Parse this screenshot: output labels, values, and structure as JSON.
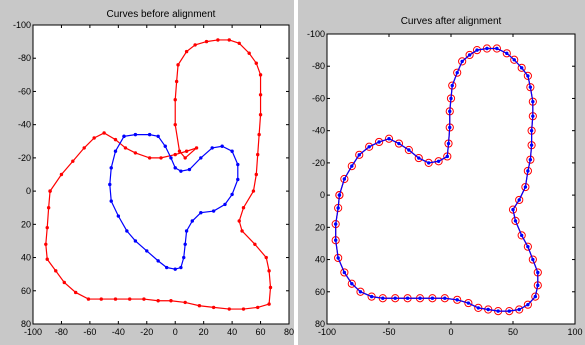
{
  "chart_data": [
    {
      "type": "line",
      "title": "Curves before alignment",
      "xlim": [
        -100,
        80
      ],
      "ylim": [
        -100,
        80
      ],
      "y_reversed": true,
      "xticks": [
        -100,
        -80,
        -60,
        -40,
        -20,
        0,
        20,
        40,
        60,
        80
      ],
      "yticks": [
        -100,
        -80,
        -60,
        -40,
        -20,
        0,
        20,
        40,
        60,
        80
      ],
      "grid": false,
      "series": [
        {
          "color": "#ff0000",
          "marker": "dot",
          "points": [
            [
              -88,
              0
            ],
            [
              -80,
              -10
            ],
            [
              -72,
              -18
            ],
            [
              -64,
              -26
            ],
            [
              -57,
              -32
            ],
            [
              -50,
              -35
            ],
            [
              -42,
              -31
            ],
            [
              -35,
              -26
            ],
            [
              -28,
              -23
            ],
            [
              -18,
              -20
            ],
            [
              -10,
              -20
            ],
            [
              0,
              -22
            ],
            [
              8,
              -24
            ],
            [
              15,
              -26
            ],
            [
              7,
              -20
            ],
            [
              3,
              -24
            ],
            [
              0,
              -40
            ],
            [
              0,
              -55
            ],
            [
              1,
              -66
            ],
            [
              2,
              -76
            ],
            [
              8,
              -84
            ],
            [
              14,
              -88
            ],
            [
              22,
              -90
            ],
            [
              30,
              -91
            ],
            [
              38,
              -91
            ],
            [
              45,
              -89
            ],
            [
              52,
              -83
            ],
            [
              57,
              -77
            ],
            [
              60,
              -70
            ],
            [
              60,
              -58
            ],
            [
              60,
              -46
            ],
            [
              59,
              -34
            ],
            [
              58,
              -22
            ],
            [
              57,
              -10
            ],
            [
              55,
              0
            ],
            [
              48,
              10
            ],
            [
              45,
              18
            ],
            [
              47,
              24
            ],
            [
              56,
              32
            ],
            [
              64,
              40
            ],
            [
              66,
              48
            ],
            [
              67,
              58
            ],
            [
              66,
              68
            ],
            [
              58,
              70
            ],
            [
              48,
              71
            ],
            [
              38,
              71
            ],
            [
              27,
              70
            ],
            [
              17,
              69
            ],
            [
              7,
              67
            ],
            [
              -3,
              66
            ],
            [
              -12,
              66
            ],
            [
              -22,
              65
            ],
            [
              -32,
              65
            ],
            [
              -42,
              65
            ],
            [
              -52,
              65
            ],
            [
              -61,
              65
            ],
            [
              -70,
              61
            ],
            [
              -78,
              55
            ],
            [
              -84,
              48
            ],
            [
              -90,
              41
            ],
            [
              -91,
              32
            ],
            [
              -90,
              22
            ],
            [
              -89,
              10
            ],
            [
              -88,
              0
            ]
          ]
        },
        {
          "color": "#0000ff",
          "marker": "dot",
          "points": [
            [
              -36,
              -33
            ],
            [
              -28,
              -34
            ],
            [
              -18,
              -34
            ],
            [
              -12,
              -33
            ],
            [
              -7,
              -27
            ],
            [
              -3,
              -20
            ],
            [
              0,
              -14
            ],
            [
              4,
              -12
            ],
            [
              10,
              -13
            ],
            [
              18,
              -20
            ],
            [
              26,
              -26
            ],
            [
              33,
              -27
            ],
            [
              40,
              -24
            ],
            [
              44,
              -16
            ],
            [
              44,
              -7
            ],
            [
              40,
              2
            ],
            [
              35,
              8
            ],
            [
              27,
              12
            ],
            [
              18,
              13
            ],
            [
              12,
              18
            ],
            [
              8,
              24
            ],
            [
              7,
              32
            ],
            [
              6,
              40
            ],
            [
              4,
              46
            ],
            [
              0,
              47
            ],
            [
              -6,
              46
            ],
            [
              -12,
              42
            ],
            [
              -20,
              36
            ],
            [
              -28,
              30
            ],
            [
              -34,
              24
            ],
            [
              -40,
              15
            ],
            [
              -45,
              6
            ],
            [
              -46,
              -4
            ],
            [
              -45,
              -14
            ],
            [
              -42,
              -24
            ],
            [
              -36,
              -33
            ]
          ]
        }
      ]
    },
    {
      "type": "line",
      "title": "Curves after alignment",
      "xlim": [
        -100,
        100
      ],
      "ylim": [
        -100,
        80
      ],
      "y_reversed": true,
      "xticks": [
        -100,
        -50,
        0,
        50,
        100
      ],
      "yticks": [
        -100,
        -80,
        -60,
        -40,
        -20,
        0,
        20,
        40,
        60,
        80
      ],
      "grid": false,
      "series": [
        {
          "color": "#ff0000",
          "marker": "circle",
          "points": [
            [
              -90,
              0
            ],
            [
              -86,
              -10
            ],
            [
              -80,
              -18
            ],
            [
              -74,
              -25
            ],
            [
              -66,
              -30
            ],
            [
              -58,
              -33
            ],
            [
              -50,
              -35
            ],
            [
              -42,
              -32
            ],
            [
              -34,
              -28
            ],
            [
              -26,
              -23
            ],
            [
              -18,
              -20
            ],
            [
              -10,
              -21
            ],
            [
              -3,
              -24
            ],
            [
              -2,
              -32
            ],
            [
              -1,
              -42
            ],
            [
              -1,
              -52
            ],
            [
              0,
              -60
            ],
            [
              1,
              -68
            ],
            [
              5,
              -76
            ],
            [
              9,
              -83
            ],
            [
              15,
              -87
            ],
            [
              21,
              -90
            ],
            [
              29,
              -91
            ],
            [
              37,
              -91
            ],
            [
              45,
              -88
            ],
            [
              51,
              -84
            ],
            [
              57,
              -79
            ],
            [
              62,
              -74
            ],
            [
              64,
              -67
            ],
            [
              66,
              -58
            ],
            [
              66,
              -49
            ],
            [
              65,
              -40
            ],
            [
              65,
              -31
            ],
            [
              64,
              -22
            ],
            [
              62,
              -15
            ],
            [
              60,
              -5
            ],
            [
              55,
              3
            ],
            [
              50,
              9
            ],
            [
              52,
              16
            ],
            [
              57,
              25
            ],
            [
              62,
              32
            ],
            [
              66,
              40
            ],
            [
              70,
              48
            ],
            [
              70,
              56
            ],
            [
              68,
              63
            ],
            [
              62,
              68
            ],
            [
              55,
              71
            ],
            [
              47,
              72
            ],
            [
              38,
              72
            ],
            [
              30,
              71
            ],
            [
              22,
              70
            ],
            [
              14,
              67
            ],
            [
              5,
              65
            ],
            [
              -5,
              64
            ],
            [
              -15,
              64
            ],
            [
              -25,
              64
            ],
            [
              -35,
              64
            ],
            [
              -45,
              64
            ],
            [
              -55,
              64
            ],
            [
              -64,
              63
            ],
            [
              -73,
              60
            ],
            [
              -80,
              55
            ],
            [
              -86,
              48
            ],
            [
              -91,
              39
            ],
            [
              -93,
              28
            ],
            [
              -93,
              18
            ],
            [
              -91,
              8
            ],
            [
              -90,
              0
            ]
          ]
        },
        {
          "color": "#0000ff",
          "marker": "dot",
          "points": [
            [
              -90,
              0
            ],
            [
              -86,
              -10
            ],
            [
              -80,
              -18
            ],
            [
              -74,
              -25
            ],
            [
              -66,
              -30
            ],
            [
              -58,
              -33
            ],
            [
              -50,
              -35
            ],
            [
              -42,
              -32
            ],
            [
              -34,
              -28
            ],
            [
              -26,
              -23
            ],
            [
              -18,
              -20
            ],
            [
              -10,
              -21
            ],
            [
              -3,
              -24
            ],
            [
              -2,
              -32
            ],
            [
              -1,
              -42
            ],
            [
              -1,
              -52
            ],
            [
              0,
              -60
            ],
            [
              1,
              -68
            ],
            [
              5,
              -76
            ],
            [
              9,
              -83
            ],
            [
              15,
              -87
            ],
            [
              21,
              -90
            ],
            [
              29,
              -91
            ],
            [
              37,
              -91
            ],
            [
              45,
              -88
            ],
            [
              51,
              -84
            ],
            [
              57,
              -79
            ],
            [
              62,
              -74
            ],
            [
              64,
              -67
            ],
            [
              66,
              -58
            ],
            [
              66,
              -49
            ],
            [
              65,
              -40
            ],
            [
              65,
              -31
            ],
            [
              64,
              -22
            ],
            [
              62,
              -15
            ],
            [
              60,
              -5
            ],
            [
              55,
              3
            ],
            [
              50,
              9
            ],
            [
              52,
              16
            ],
            [
              57,
              25
            ],
            [
              62,
              32
            ],
            [
              66,
              40
            ],
            [
              70,
              48
            ],
            [
              70,
              56
            ],
            [
              68,
              63
            ],
            [
              62,
              68
            ],
            [
              55,
              71
            ],
            [
              47,
              72
            ],
            [
              38,
              72
            ],
            [
              30,
              71
            ],
            [
              22,
              70
            ],
            [
              14,
              67
            ],
            [
              5,
              65
            ],
            [
              -5,
              64
            ],
            [
              -15,
              64
            ],
            [
              -25,
              64
            ],
            [
              -35,
              64
            ],
            [
              -45,
              64
            ],
            [
              -55,
              64
            ],
            [
              -64,
              63
            ],
            [
              -73,
              60
            ],
            [
              -80,
              55
            ],
            [
              -86,
              48
            ],
            [
              -91,
              39
            ],
            [
              -93,
              28
            ],
            [
              -93,
              18
            ],
            [
              -91,
              8
            ],
            [
              -90,
              0
            ]
          ]
        }
      ]
    }
  ]
}
